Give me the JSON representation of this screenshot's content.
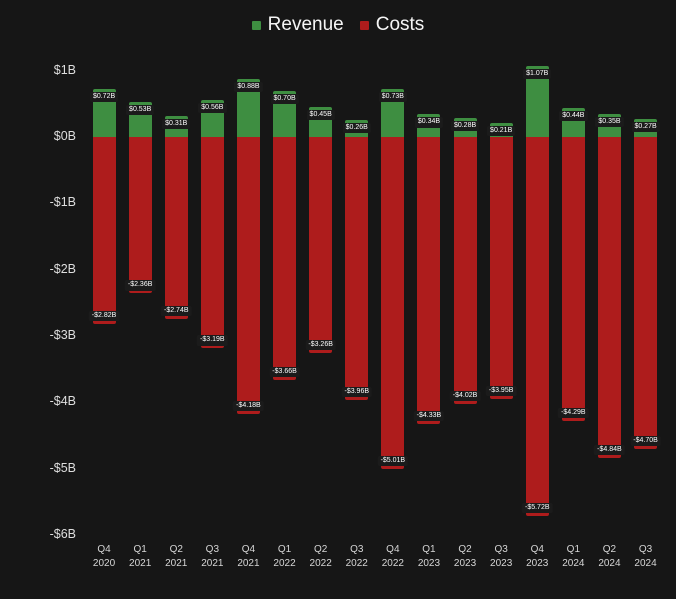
{
  "colors": {
    "background": "#161616",
    "revenue": "#3e8e41",
    "costs": "#ae1c1c",
    "axis_text": "#dedede",
    "legend_text": "#f5f5f5",
    "label_bg": "#1b1b1b",
    "label_text": "#ffffff"
  },
  "chart_data": {
    "type": "bar",
    "title": "",
    "xlabel": "",
    "ylabel": "",
    "grid": false,
    "legend_position": "top",
    "ylim": [
      -6,
      1.2
    ],
    "y_ticks": [
      "$1B",
      "$0B",
      "-$1B",
      "-$2B",
      "-$3B",
      "-$4B",
      "-$5B",
      "-$6B"
    ],
    "y_tick_values": [
      1,
      0,
      -1,
      -2,
      -3,
      -4,
      -5,
      -6
    ],
    "categories": [
      "Q4 2020",
      "Q1 2021",
      "Q2 2021",
      "Q3 2021",
      "Q4 2021",
      "Q1 2022",
      "Q2 2022",
      "Q3 2022",
      "Q4 2022",
      "Q1 2023",
      "Q2 2023",
      "Q3 2023",
      "Q4 2023",
      "Q1 2024",
      "Q2 2024",
      "Q3 2024"
    ],
    "series": [
      {
        "name": "Revenue",
        "color": "#3e8e41",
        "values": [
          0.72,
          0.53,
          0.31,
          0.56,
          0.88,
          0.7,
          0.45,
          0.26,
          0.73,
          0.34,
          0.28,
          0.21,
          1.07,
          0.44,
          0.35,
          0.27
        ],
        "labels": [
          "$0.72B",
          "$0.53B",
          "$0.31B",
          "$0.56B",
          "$0.88B",
          "$0.70B",
          "$0.45B",
          "$0.26B",
          "$0.73B",
          "$0.34B",
          "$0.28B",
          "$0.21B",
          "$1.07B",
          "$0.44B",
          "$0.35B",
          "$0.27B"
        ]
      },
      {
        "name": "Costs",
        "color": "#ae1c1c",
        "values": [
          -2.82,
          -2.36,
          -2.74,
          -3.19,
          -4.18,
          -3.66,
          -3.26,
          -3.96,
          -5.01,
          -4.33,
          -4.02,
          -3.95,
          -5.72,
          -4.29,
          -4.84,
          -4.7
        ],
        "labels": [
          "-$2.82B",
          "-$2.36B",
          "-$2.74B",
          "-$3.19B",
          "-$4.18B",
          "-$3.66B",
          "-$3.26B",
          "-$3.96B",
          "-$5.01B",
          "-$4.33B",
          "-$4.02B",
          "-$3.95B",
          "-$5.72B",
          "-$4.29B",
          "-$4.84B",
          "-$4.70B"
        ]
      }
    ]
  }
}
